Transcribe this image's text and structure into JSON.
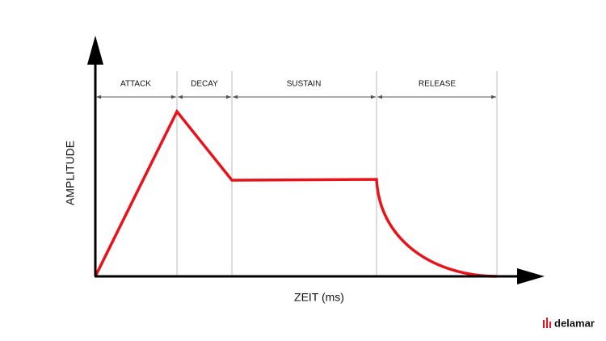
{
  "axes": {
    "y_label": "AMPLITUDE",
    "x_label": "ZEIT (ms)"
  },
  "phases": [
    {
      "label": "ATTACK"
    },
    {
      "label": "DECAY"
    },
    {
      "label": "SUSTAIN"
    },
    {
      "label": "RELEASE"
    }
  ],
  "logo": {
    "text": "delamar"
  }
}
